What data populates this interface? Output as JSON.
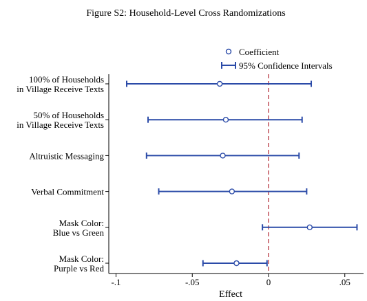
{
  "chart_data": {
    "type": "scatter",
    "title": "Figure S2: Household-Level Cross Randomizations",
    "xlabel": "Effect",
    "ylabel": "",
    "xlim": [
      -0.1,
      0.06
    ],
    "x_ticks": [
      -0.1,
      -0.05,
      0,
      0.05
    ],
    "x_tick_labels": [
      "-.1",
      "-.05",
      "0",
      ".05"
    ],
    "reference_line": 0,
    "legend": {
      "placement": "top-right",
      "entries": [
        "Coefficient",
        "95% Confidence Intervals"
      ]
    },
    "categories": [
      [
        "100% of Households",
        "in Village Receive Texts"
      ],
      [
        "50% of Households",
        "in Village Receive Texts"
      ],
      [
        "Altruistic Messaging"
      ],
      [
        "Verbal Commitment"
      ],
      [
        "Mask Color:",
        "Blue vs Green"
      ],
      [
        "Mask Color:",
        "Purple vs Red"
      ]
    ],
    "series": [
      {
        "name": "Coefficient",
        "values": [
          -0.032,
          -0.028,
          -0.03,
          -0.024,
          0.027,
          -0.021
        ]
      },
      {
        "name": "95% Confidence Intervals",
        "low": [
          -0.093,
          -0.079,
          -0.08,
          -0.072,
          -0.004,
          -0.043
        ],
        "high": [
          0.028,
          0.022,
          0.02,
          0.025,
          0.058,
          -0.001
        ]
      }
    ],
    "colors": {
      "marker": "#2b4ba8",
      "ci": "#2b4ba8",
      "ref_line": "#c0505a",
      "axis": "#000000"
    },
    "grid": false
  }
}
